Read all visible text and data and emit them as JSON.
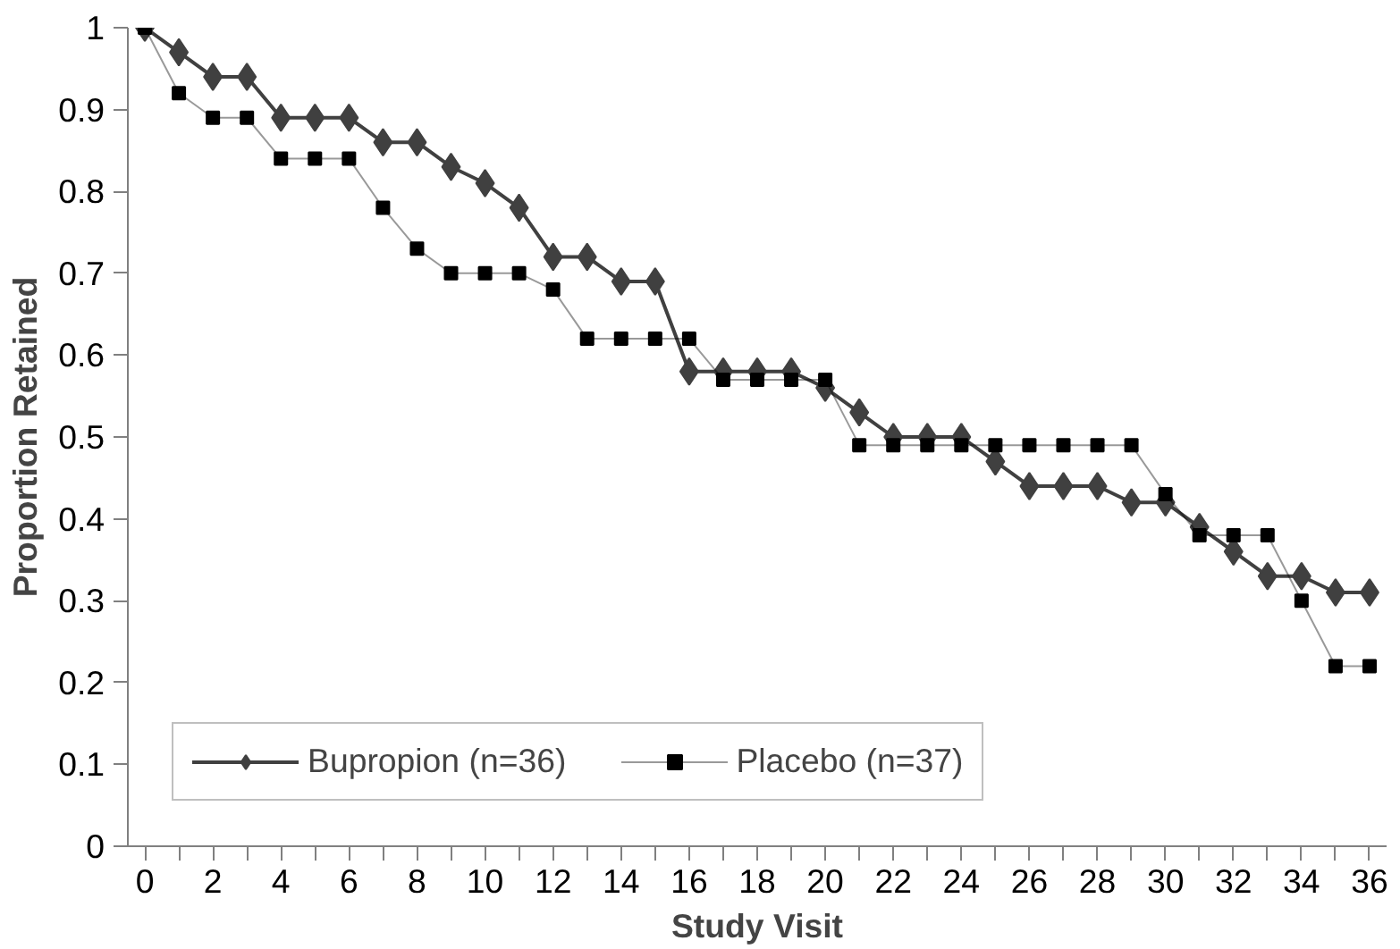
{
  "chart_data": {
    "type": "line",
    "xlabel": "Study Visit",
    "ylabel": "Proportion Retained",
    "x": [
      0,
      1,
      2,
      3,
      4,
      5,
      6,
      7,
      8,
      9,
      10,
      11,
      12,
      13,
      14,
      15,
      16,
      17,
      18,
      19,
      20,
      21,
      22,
      23,
      24,
      25,
      26,
      27,
      28,
      29,
      30,
      31,
      32,
      33,
      34,
      35,
      36
    ],
    "series": [
      {
        "name": "Bupropion (n=36)",
        "color": "#404040",
        "marker": "diamond",
        "values": [
          1,
          0.97,
          0.94,
          0.94,
          0.89,
          0.89,
          0.89,
          0.86,
          0.86,
          0.83,
          0.81,
          0.78,
          0.72,
          0.72,
          0.69,
          0.69,
          0.58,
          0.58,
          0.58,
          0.58,
          0.56,
          0.53,
          0.5,
          0.5,
          0.5,
          0.47,
          0.44,
          0.44,
          0.44,
          0.42,
          0.42,
          0.39,
          0.36,
          0.33,
          0.33,
          0.31,
          0.31
        ]
      },
      {
        "name": "Placebo (n=37)",
        "color": "#000000",
        "marker": "square",
        "values": [
          1,
          0.92,
          0.89,
          0.89,
          0.84,
          0.84,
          0.84,
          0.78,
          0.73,
          0.7,
          0.7,
          0.7,
          0.68,
          0.62,
          0.62,
          0.62,
          0.62,
          0.57,
          0.57,
          0.57,
          0.57,
          0.49,
          0.49,
          0.49,
          0.49,
          0.49,
          0.49,
          0.49,
          0.49,
          0.49,
          0.43,
          0.38,
          0.38,
          0.38,
          0.3,
          0.22,
          0.22
        ]
      }
    ],
    "xlim": [
      -0.5,
      36.5
    ],
    "ylim": [
      0,
      1
    ],
    "xticks": [
      0,
      {
        "value": 1,
        "label": null
      },
      2,
      {
        "value": 3,
        "label": null
      },
      4,
      {
        "value": 5,
        "label": null
      },
      6,
      {
        "value": 7,
        "label": null
      },
      8,
      {
        "value": 9,
        "label": null
      },
      10,
      {
        "value": 11,
        "label": null
      },
      12,
      {
        "value": 13,
        "label": null
      },
      14,
      {
        "value": 15,
        "label": null
      },
      16,
      {
        "value": 17,
        "label": null
      },
      18,
      {
        "value": 19,
        "label": null
      },
      20,
      {
        "value": 21,
        "label": null
      },
      22,
      {
        "value": 23,
        "label": null
      },
      24,
      {
        "value": 25,
        "label": null
      },
      26,
      {
        "value": 27,
        "label": null
      },
      28,
      {
        "value": 29,
        "label": null
      },
      30,
      {
        "value": 31,
        "label": null
      },
      32,
      {
        "value": 33,
        "label": null
      },
      34,
      {
        "value": 35,
        "label": null
      },
      36
    ],
    "yticks": [
      0,
      0.1,
      0.2,
      0.3,
      0.4,
      0.5,
      0.6,
      0.7,
      0.8,
      0.9,
      1
    ],
    "grid": false,
    "legend": "bottom left",
    "line_style": "solid"
  }
}
